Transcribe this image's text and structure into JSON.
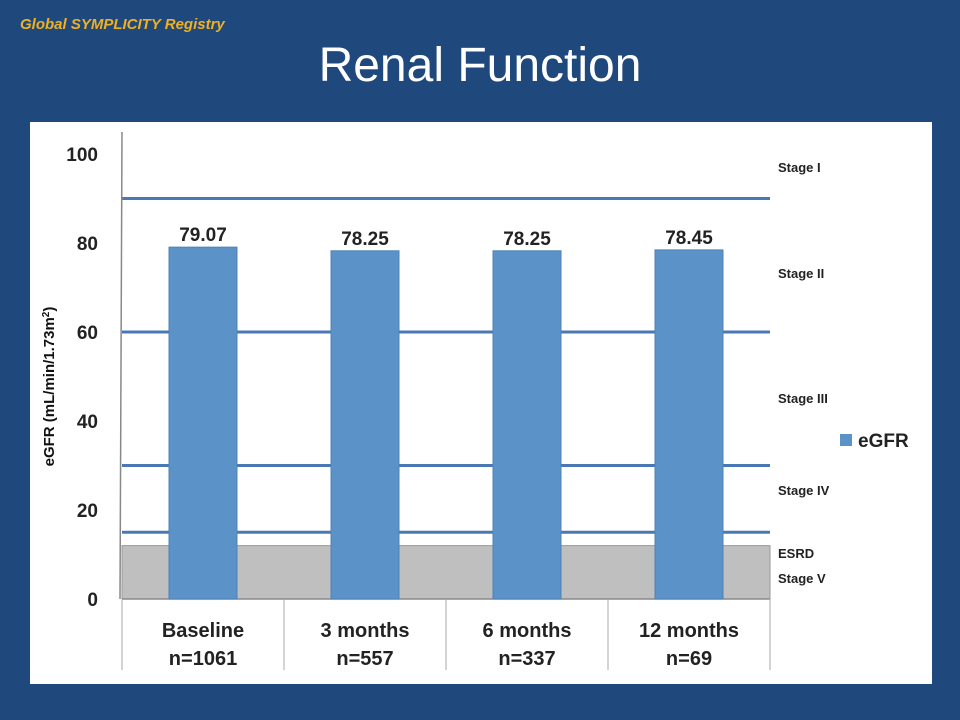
{
  "header": {
    "registry": "Global SYMPLICITY Registry",
    "title": "Renal Function"
  },
  "colors": {
    "background": "#1f497d",
    "bar": "#5b93c9",
    "stage_line": "#4a78b5",
    "esrd_band": "#bfbfbf",
    "registry_text": "#f0b020"
  },
  "chart_data": {
    "type": "bar",
    "categories": [
      "Baseline",
      "3 months",
      "6 months",
      "12 months"
    ],
    "category_sublabels": [
      "n=1061",
      "n=557",
      "n=337",
      "n=69"
    ],
    "series": [
      {
        "name": "eGFR",
        "values": [
          79.07,
          78.25,
          78.25,
          78.45
        ]
      }
    ],
    "data_labels": [
      "79.07",
      "78.25",
      "78.25",
      "78.45"
    ],
    "ylabel": "eGFR (mL/min/1.73m",
    "ylabel_sup": "2",
    "ylabel_close": ")",
    "ylim": [
      0,
      100
    ],
    "yticks": [
      0,
      20,
      40,
      60,
      80,
      100
    ],
    "grid": false,
    "legend": "right",
    "stage_thresholds": [
      15,
      30,
      60,
      90
    ],
    "esrd_band": [
      0,
      12
    ],
    "stage_labels": [
      {
        "label": "Stage I",
        "value": 95
      },
      {
        "label": "Stage II",
        "value": 72
      },
      {
        "label": "Stage III",
        "value": 45
      },
      {
        "label": "Stage IV",
        "value": 25
      },
      {
        "label": "ESRD",
        "value": 10
      },
      {
        "label": "Stage V",
        "value": 4
      }
    ]
  }
}
